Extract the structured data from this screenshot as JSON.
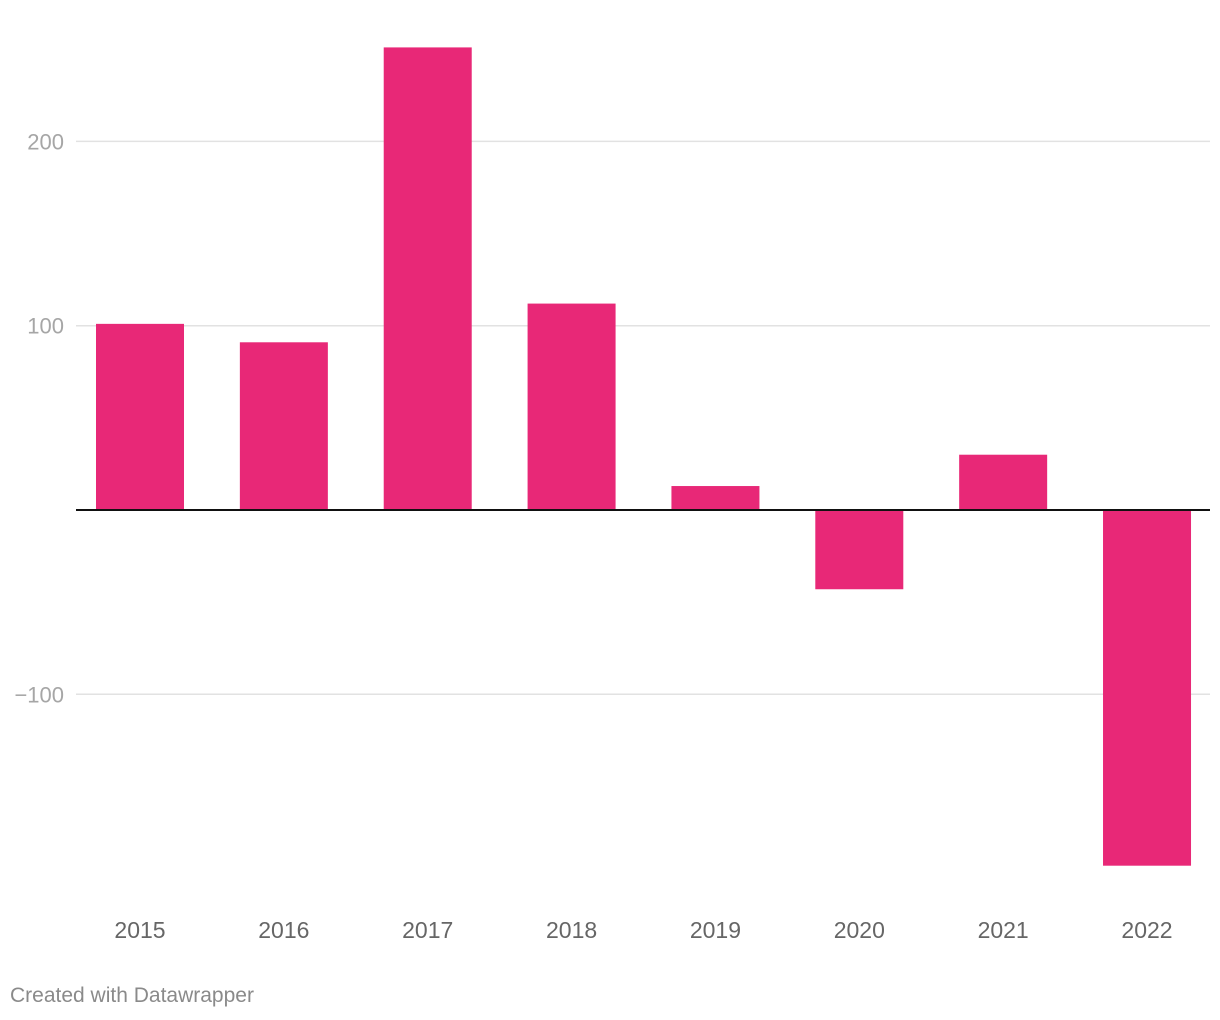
{
  "chart_data": {
    "type": "bar",
    "categories": [
      "2015",
      "2016",
      "2017",
      "2018",
      "2019",
      "2020",
      "2021",
      "2022"
    ],
    "values": [
      101,
      91,
      251,
      112,
      13,
      -43,
      30,
      -193
    ],
    "yticks": [
      {
        "value": 200,
        "label": "200"
      },
      {
        "value": 100,
        "label": "100"
      },
      {
        "value": -100,
        "label": "−100"
      }
    ],
    "ylim": [
      -210,
      265
    ],
    "grid": true,
    "zero_line": true,
    "bar_color": "#e82877",
    "title": "",
    "xlabel": "",
    "ylabel": ""
  },
  "footer": {
    "credit": "Created with Datawrapper"
  }
}
